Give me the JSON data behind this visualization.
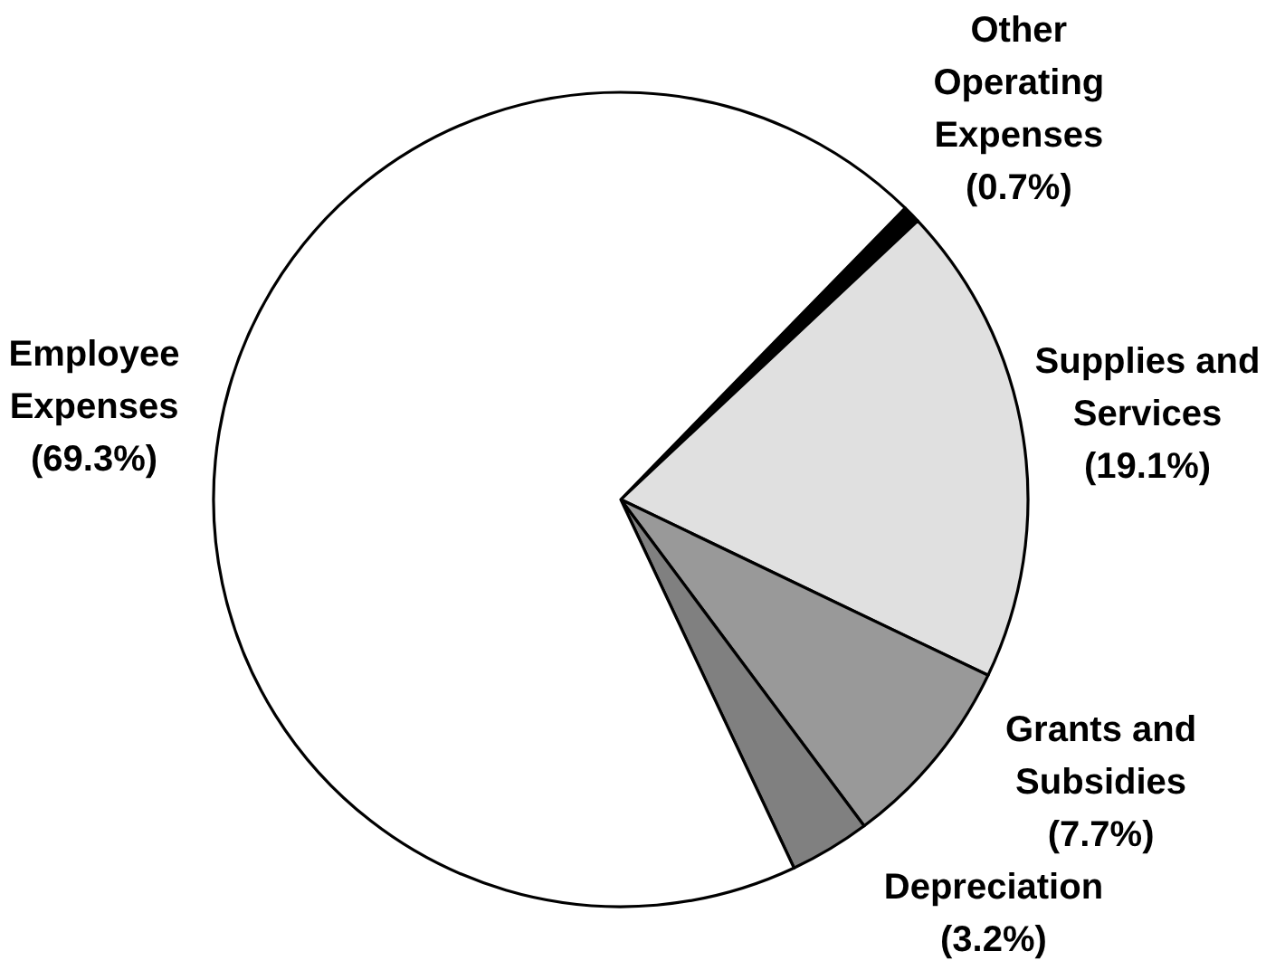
{
  "chart_data": {
    "type": "pie",
    "categories": [
      "Other Operating Expenses",
      "Supplies and Services",
      "Grants and Subsidies",
      "Depreciation",
      "Employee Expenses"
    ],
    "values": [
      0.7,
      19.1,
      7.7,
      3.2,
      69.3
    ],
    "colors": [
      "#000000",
      "#e0e0e0",
      "#999999",
      "#808080",
      "#ffffff"
    ],
    "value_labels": [
      "(0.7%)",
      "(19.1%)",
      "(7.7%)",
      "(3.2%)",
      "(69.3%)"
    ]
  }
}
